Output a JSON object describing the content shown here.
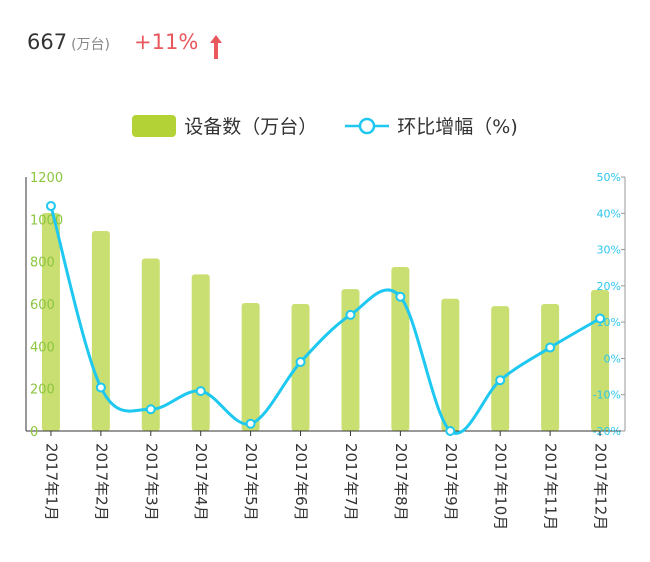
{
  "kpi": {
    "value": "667",
    "unit": "(万台)",
    "change": "+11%"
  },
  "legend": {
    "bar_label": "设备数（万台）",
    "line_label": "环比增幅（%)"
  },
  "colors": {
    "bar": "#b2d235",
    "line": "#1ec8f0",
    "left_axis": "#8cc63f",
    "right_axis": "#2cc6ee",
    "change": "#e8585d"
  },
  "chart_data": {
    "type": "bar",
    "categories": [
      "2017年1月",
      "2017年2月",
      "2017年3月",
      "2017年4月",
      "2017年5月",
      "2017年6月",
      "2017年7月",
      "2017年8月",
      "2017年9月",
      "2017年10月",
      "2017年11月",
      "2017年12月"
    ],
    "series": [
      {
        "name": "设备数（万台）",
        "type": "bar",
        "axis": "left",
        "values": [
          1030,
          945,
          815,
          740,
          605,
          600,
          670,
          775,
          625,
          590,
          600,
          667
        ]
      },
      {
        "name": "环比增幅（%)",
        "type": "line",
        "axis": "right",
        "values": [
          42,
          -8,
          -14,
          -9,
          -18,
          -1,
          12,
          17,
          -20,
          -6,
          3,
          11
        ]
      }
    ],
    "y_left": {
      "min": 0,
      "max": 1200,
      "ticks": [
        "0",
        "200",
        "400",
        "600",
        "800",
        "1000",
        "1200"
      ]
    },
    "y_right": {
      "min": -20,
      "max": 50,
      "ticks": [
        "-20%",
        "-10%",
        "0%",
        "10%",
        "20%",
        "30%",
        "40%",
        "50%"
      ]
    },
    "grid": false,
    "legend_position": "top-center"
  }
}
